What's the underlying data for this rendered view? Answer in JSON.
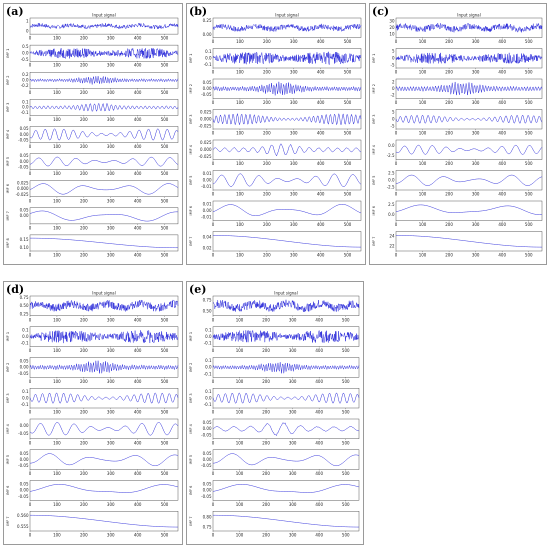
{
  "xticks": [
    "0",
    "100",
    "200",
    "300",
    "400",
    "500"
  ],
  "xmax": 550,
  "signal_title": "Input signal",
  "line_color": "#1a1ad6",
  "panels": [
    {
      "label": "(a)",
      "rows": [
        {
          "name": "",
          "yticks": [
            "1",
            "0"
          ],
          "ylim": [
            -0.3,
            1.3
          ],
          "amp": 0.25,
          "freq": 0.45,
          "kind": "signal"
        },
        {
          "name": "IMF 1",
          "yticks": [
            "0.5",
            "0.0",
            "-0.5"
          ],
          "ylim": [
            -0.6,
            0.6
          ],
          "amp": 0.4,
          "freq": 0.9,
          "kind": "noise"
        },
        {
          "name": "IMF 2",
          "yticks": [
            "0.2",
            "0.0",
            "-0.2"
          ],
          "ylim": [
            -0.3,
            0.3
          ],
          "amp": 0.15,
          "freq": 0.35,
          "kind": "burst"
        },
        {
          "name": "IMF 3",
          "yticks": [
            "0.1",
            "0.0",
            "-0.1"
          ],
          "ylim": [
            -0.15,
            0.15
          ],
          "amp": 0.08,
          "freq": 0.2,
          "kind": "burst"
        },
        {
          "name": "IMF 4",
          "yticks": [
            "0.05",
            "0.00",
            "-0.05"
          ],
          "ylim": [
            -0.07,
            0.07
          ],
          "amp": 0.05,
          "freq": 0.09,
          "kind": "wave"
        },
        {
          "name": "IMF 5",
          "yticks": [
            "0.05",
            "0.00",
            "-0.05"
          ],
          "ylim": [
            -0.07,
            0.07
          ],
          "amp": 0.04,
          "freq": 0.045,
          "kind": "wave"
        },
        {
          "name": "IMF 6",
          "yticks": [
            "0.025",
            "0.000",
            "-0.025"
          ],
          "ylim": [
            -0.035,
            0.035
          ],
          "amp": 0.025,
          "freq": 0.02,
          "kind": "wave"
        },
        {
          "name": "IMF 7",
          "yticks": [
            "0.05",
            "0.00"
          ],
          "ylim": [
            -0.07,
            0.07
          ],
          "amp": 0.05,
          "freq": 0.012,
          "kind": "wave"
        },
        {
          "name": "IMF 8",
          "yticks": [
            "0.15",
            "0.10"
          ],
          "ylim": [
            0.08,
            0.18
          ],
          "amp": 0.03,
          "freq": 0.004,
          "kind": "trend"
        }
      ]
    },
    {
      "label": "(b)",
      "rows": [
        {
          "name": "",
          "yticks": [
            "0.25",
            "0.00"
          ],
          "ylim": [
            -0.05,
            0.3
          ],
          "amp": 0.06,
          "freq": 0.45,
          "kind": "signal"
        },
        {
          "name": "IMF 1",
          "yticks": [
            "0.1",
            "0.0",
            "-0.1"
          ],
          "ylim": [
            -0.15,
            0.15
          ],
          "amp": 0.1,
          "freq": 0.9,
          "kind": "noise"
        },
        {
          "name": "IMF 2",
          "yticks": [
            "0.05",
            "0.00",
            "-0.05"
          ],
          "ylim": [
            -0.08,
            0.08
          ],
          "amp": 0.05,
          "freq": 0.35,
          "kind": "burst"
        },
        {
          "name": "IMF 3",
          "yticks": [
            "0.025",
            "0.000",
            "-0.025"
          ],
          "ylim": [
            -0.035,
            0.035
          ],
          "amp": 0.02,
          "freq": 0.2,
          "kind": "wave"
        },
        {
          "name": "IMF 4",
          "yticks": [
            "0.025",
            "0.000",
            "-0.025"
          ],
          "ylim": [
            -0.035,
            0.035
          ],
          "amp": 0.02,
          "freq": 0.09,
          "kind": "burst"
        },
        {
          "name": "IMF 5",
          "yticks": [
            "0.01",
            "0.00",
            "-0.01"
          ],
          "ylim": [
            -0.015,
            0.015
          ],
          "amp": 0.01,
          "freq": 0.045,
          "kind": "wave"
        },
        {
          "name": "IMF 6",
          "yticks": [
            "0.01",
            "0.00",
            "-0.01"
          ],
          "ylim": [
            -0.015,
            0.015
          ],
          "amp": 0.01,
          "freq": 0.015,
          "kind": "wave"
        },
        {
          "name": "IMF 7",
          "yticks": [
            "0.04",
            "0.02"
          ],
          "ylim": [
            0.015,
            0.05
          ],
          "amp": 0.012,
          "freq": 0.004,
          "kind": "trend"
        }
      ]
    },
    {
      "label": "(c)",
      "rows": [
        {
          "name": "",
          "yticks": [
            "30",
            "20",
            "10"
          ],
          "ylim": [
            5,
            35
          ],
          "amp": 6,
          "freq": 0.45,
          "kind": "signal"
        },
        {
          "name": "IMF 1",
          "yticks": [
            "5",
            "0",
            "-5"
          ],
          "ylim": [
            -7,
            7
          ],
          "amp": 4,
          "freq": 0.9,
          "kind": "noise"
        },
        {
          "name": "IMF 2",
          "yticks": [
            "2",
            "0",
            "-2"
          ],
          "ylim": [
            -3,
            3
          ],
          "amp": 2,
          "freq": 0.3,
          "kind": "burst"
        },
        {
          "name": "IMF 3",
          "yticks": [
            "5",
            "0",
            "-5"
          ],
          "ylim": [
            -7,
            7
          ],
          "amp": 3,
          "freq": 0.15,
          "kind": "wave"
        },
        {
          "name": "IMF 4",
          "yticks": [
            "0.0",
            "-2.5"
          ],
          "ylim": [
            -3.5,
            1.5
          ],
          "amp": 1.2,
          "freq": 0.06,
          "kind": "wave"
        },
        {
          "name": "IMF 5",
          "yticks": [
            "2.5",
            "0.0",
            "-2.5"
          ],
          "ylim": [
            -3.5,
            3.5
          ],
          "amp": 2,
          "freq": 0.025,
          "kind": "wave"
        },
        {
          "name": "IMF 6",
          "yticks": [
            "2.5",
            "0.0"
          ],
          "ylim": [
            -1.5,
            3.5
          ],
          "amp": 1.5,
          "freq": 0.01,
          "kind": "wave"
        },
        {
          "name": "IMF 7",
          "yticks": [
            "24",
            "22"
          ],
          "ylim": [
            21,
            25
          ],
          "amp": 1.5,
          "freq": 0.004,
          "kind": "trend"
        }
      ]
    },
    {
      "label": "(d)",
      "rows": [
        {
          "name": "",
          "yticks": [
            "0.75",
            "0.50",
            "0.25"
          ],
          "ylim": [
            0.2,
            0.8
          ],
          "amp": 0.15,
          "freq": 0.45,
          "kind": "signal"
        },
        {
          "name": "IMF 1",
          "yticks": [
            "0.1",
            "0.0",
            "-0.1"
          ],
          "ylim": [
            -0.15,
            0.15
          ],
          "amp": 0.1,
          "freq": 0.9,
          "kind": "noise"
        },
        {
          "name": "IMF 2",
          "yticks": [
            "0.05",
            "0.00",
            "-0.05"
          ],
          "ylim": [
            -0.08,
            0.08
          ],
          "amp": 0.05,
          "freq": 0.35,
          "kind": "burst"
        },
        {
          "name": "IMF 3",
          "yticks": [
            "0.1",
            "0.0",
            "-0.1"
          ],
          "ylim": [
            -0.15,
            0.15
          ],
          "amp": 0.08,
          "freq": 0.12,
          "kind": "wave"
        },
        {
          "name": "IMF 4",
          "yticks": [
            "0.00",
            "-0.05"
          ],
          "ylim": [
            -0.08,
            0.04
          ],
          "amp": 0.04,
          "freq": 0.05,
          "kind": "wave"
        },
        {
          "name": "IMF 5",
          "yticks": [
            "0.05",
            "0.00",
            "-0.05"
          ],
          "ylim": [
            -0.08,
            0.08
          ],
          "amp": 0.05,
          "freq": 0.02,
          "kind": "wave"
        },
        {
          "name": "IMF 6",
          "yticks": [
            "0.05",
            "0.00",
            "-0.05"
          ],
          "ylim": [
            -0.08,
            0.08
          ],
          "amp": 0.05,
          "freq": 0.008,
          "kind": "wave"
        },
        {
          "name": "IMF 7",
          "yticks": [
            "0.560",
            "0.555"
          ],
          "ylim": [
            0.553,
            0.562
          ],
          "amp": 0.003,
          "freq": 0.004,
          "kind": "trend"
        }
      ]
    },
    {
      "label": "(e)",
      "rows": [
        {
          "name": "",
          "yticks": [
            "0.75",
            "0.50"
          ],
          "ylim": [
            0.4,
            0.85
          ],
          "amp": 0.12,
          "freq": 0.45,
          "kind": "signal"
        },
        {
          "name": "IMF 1",
          "yticks": [
            "0.1",
            "0.0",
            "-0.1"
          ],
          "ylim": [
            -0.15,
            0.15
          ],
          "amp": 0.1,
          "freq": 0.9,
          "kind": "noise"
        },
        {
          "name": "IMF 2",
          "yticks": [
            "0.1",
            "0.0",
            "-0.1"
          ],
          "ylim": [
            -0.15,
            0.15
          ],
          "amp": 0.08,
          "freq": 0.35,
          "kind": "burst"
        },
        {
          "name": "IMF 3",
          "yticks": [
            "0.1",
            "0.0",
            "-0.1"
          ],
          "ylim": [
            -0.15,
            0.15
          ],
          "amp": 0.08,
          "freq": 0.12,
          "kind": "wave"
        },
        {
          "name": "IMF 4",
          "yticks": [
            "0.05",
            "0.00",
            "-0.05"
          ],
          "ylim": [
            -0.08,
            0.08
          ],
          "amp": 0.05,
          "freq": 0.05,
          "kind": "burst"
        },
        {
          "name": "IMF 5",
          "yticks": [
            "0.05",
            "0.00",
            "-0.05"
          ],
          "ylim": [
            -0.08,
            0.08
          ],
          "amp": 0.05,
          "freq": 0.02,
          "kind": "wave"
        },
        {
          "name": "IMF 6",
          "yticks": [
            "0.05",
            "0.00",
            "-0.05"
          ],
          "ylim": [
            -0.08,
            0.08
          ],
          "amp": 0.05,
          "freq": 0.008,
          "kind": "wave"
        },
        {
          "name": "IMF 7",
          "yticks": [
            "0.80",
            "0.75"
          ],
          "ylim": [
            0.73,
            0.83
          ],
          "amp": 0.035,
          "freq": 0.004,
          "kind": "trend"
        }
      ]
    }
  ],
  "chart_data": [
    {
      "type": "line",
      "panel": "(a)",
      "title": "Input signal",
      "x_range": [
        0,
        550
      ],
      "subplots": 9
    },
    {
      "type": "line",
      "panel": "(b)",
      "title": "Input signal",
      "x_range": [
        0,
        550
      ],
      "subplots": 8
    },
    {
      "type": "line",
      "panel": "(c)",
      "title": "Input signal",
      "x_range": [
        0,
        550
      ],
      "subplots": 8
    },
    {
      "type": "line",
      "panel": "(d)",
      "title": "Input signal",
      "x_range": [
        0,
        550
      ],
      "subplots": 8
    },
    {
      "type": "line",
      "panel": "(e)",
      "title": "Input signal",
      "x_range": [
        0,
        550
      ],
      "subplots": 8
    }
  ]
}
